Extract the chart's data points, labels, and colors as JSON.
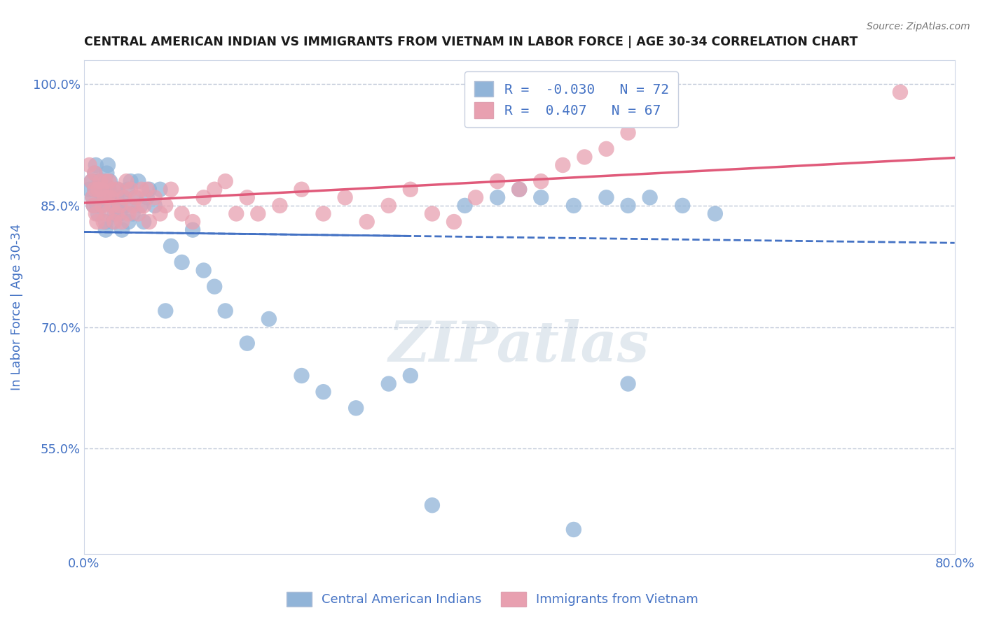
{
  "title": "CENTRAL AMERICAN INDIAN VS IMMIGRANTS FROM VIETNAM IN LABOR FORCE | AGE 30-34 CORRELATION CHART",
  "source": "Source: ZipAtlas.com",
  "ylabel": "In Labor Force | Age 30-34",
  "xlim": [
    0.0,
    0.8
  ],
  "ylim": [
    0.42,
    1.03
  ],
  "yticks": [
    0.55,
    0.7,
    0.85,
    1.0
  ],
  "ytick_labels": [
    "55.0%",
    "70.0%",
    "85.0%",
    "100.0%"
  ],
  "xticks": [
    0.0,
    0.8
  ],
  "xtick_labels": [
    "0.0%",
    "80.0%"
  ],
  "blue_R": -0.03,
  "blue_N": 72,
  "pink_R": 0.407,
  "pink_N": 67,
  "blue_color": "#91b4d8",
  "pink_color": "#e8a0b0",
  "blue_line_color": "#4472c4",
  "pink_line_color": "#e05a7a",
  "blue_scatter_x": [
    0.005,
    0.007,
    0.008,
    0.009,
    0.01,
    0.01,
    0.011,
    0.012,
    0.013,
    0.014,
    0.015,
    0.015,
    0.016,
    0.017,
    0.018,
    0.019,
    0.02,
    0.02,
    0.021,
    0.022,
    0.023,
    0.024,
    0.025,
    0.026,
    0.027,
    0.028,
    0.03,
    0.031,
    0.032,
    0.033,
    0.035,
    0.036,
    0.038,
    0.04,
    0.041,
    0.043,
    0.045,
    0.047,
    0.05,
    0.052,
    0.055,
    0.058,
    0.06,
    0.065,
    0.07,
    0.075,
    0.08,
    0.09,
    0.1,
    0.11,
    0.12,
    0.13,
    0.15,
    0.17,
    0.2,
    0.22,
    0.25,
    0.28,
    0.3,
    0.32,
    0.35,
    0.38,
    0.4,
    0.42,
    0.45,
    0.48,
    0.5,
    0.52,
    0.55,
    0.58,
    0.5,
    0.45
  ],
  "blue_scatter_y": [
    0.87,
    0.88,
    0.86,
    0.85,
    0.87,
    0.89,
    0.9,
    0.85,
    0.84,
    0.88,
    0.87,
    0.88,
    0.85,
    0.86,
    0.87,
    0.88,
    0.83,
    0.82,
    0.89,
    0.9,
    0.87,
    0.88,
    0.86,
    0.85,
    0.83,
    0.84,
    0.86,
    0.87,
    0.85,
    0.84,
    0.82,
    0.86,
    0.85,
    0.87,
    0.83,
    0.88,
    0.84,
    0.86,
    0.88,
    0.85,
    0.83,
    0.86,
    0.87,
    0.85,
    0.87,
    0.72,
    0.8,
    0.78,
    0.82,
    0.77,
    0.75,
    0.72,
    0.68,
    0.71,
    0.64,
    0.62,
    0.6,
    0.63,
    0.64,
    0.48,
    0.85,
    0.86,
    0.87,
    0.86,
    0.85,
    0.86,
    0.85,
    0.86,
    0.85,
    0.84,
    0.63,
    0.45
  ],
  "pink_scatter_x": [
    0.005,
    0.007,
    0.008,
    0.009,
    0.01,
    0.01,
    0.011,
    0.012,
    0.013,
    0.015,
    0.016,
    0.017,
    0.018,
    0.019,
    0.02,
    0.021,
    0.022,
    0.023,
    0.025,
    0.026,
    0.027,
    0.028,
    0.03,
    0.031,
    0.033,
    0.035,
    0.037,
    0.039,
    0.041,
    0.043,
    0.045,
    0.048,
    0.05,
    0.053,
    0.055,
    0.058,
    0.06,
    0.065,
    0.07,
    0.075,
    0.08,
    0.09,
    0.1,
    0.11,
    0.12,
    0.13,
    0.14,
    0.15,
    0.16,
    0.18,
    0.2,
    0.22,
    0.24,
    0.26,
    0.28,
    0.3,
    0.32,
    0.34,
    0.36,
    0.38,
    0.4,
    0.42,
    0.44,
    0.46,
    0.48,
    0.5,
    0.75
  ],
  "pink_scatter_y": [
    0.9,
    0.88,
    0.86,
    0.85,
    0.87,
    0.89,
    0.84,
    0.83,
    0.87,
    0.88,
    0.87,
    0.85,
    0.83,
    0.86,
    0.88,
    0.84,
    0.86,
    0.88,
    0.86,
    0.85,
    0.87,
    0.83,
    0.84,
    0.87,
    0.85,
    0.83,
    0.86,
    0.88,
    0.84,
    0.87,
    0.85,
    0.86,
    0.84,
    0.87,
    0.85,
    0.87,
    0.83,
    0.86,
    0.84,
    0.85,
    0.87,
    0.84,
    0.83,
    0.86,
    0.87,
    0.88,
    0.84,
    0.86,
    0.84,
    0.85,
    0.87,
    0.84,
    0.86,
    0.83,
    0.85,
    0.87,
    0.84,
    0.83,
    0.86,
    0.88,
    0.87,
    0.88,
    0.9,
    0.91,
    0.92,
    0.94,
    0.99
  ],
  "legend_blue_label": "Central American Indians",
  "legend_pink_label": "Immigrants from Vietnam",
  "watermark_text": "ZIPatlas",
  "background_color": "#ffffff",
  "grid_color": "#c0c8d8",
  "tick_label_color": "#4472c4"
}
